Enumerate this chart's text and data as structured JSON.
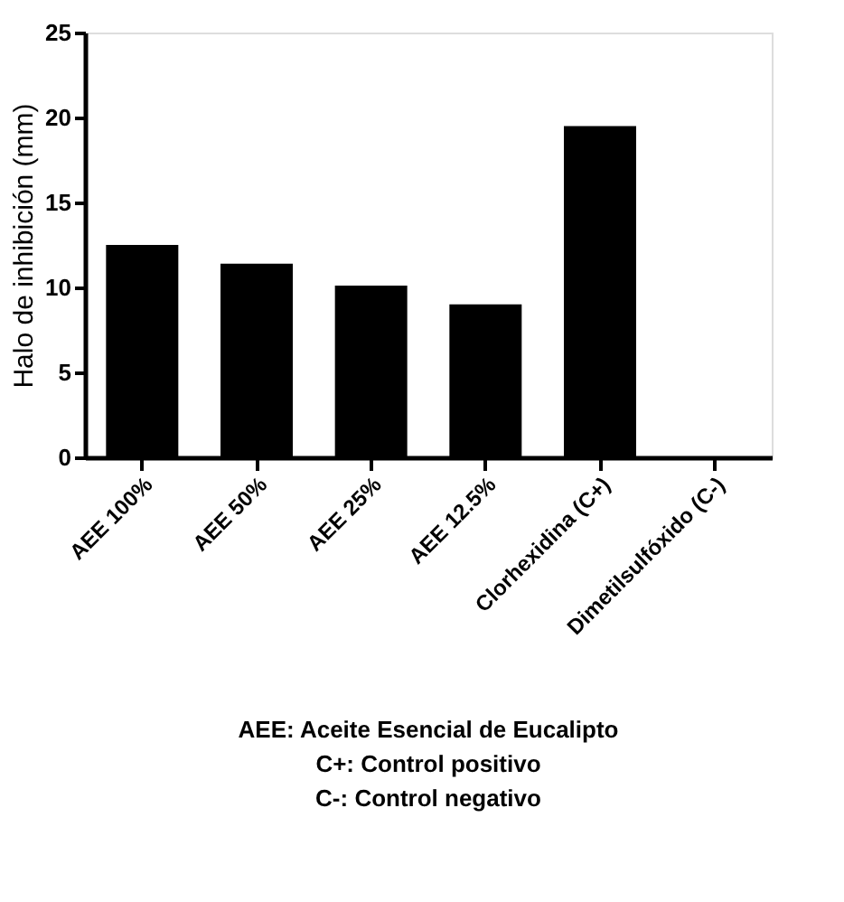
{
  "chart_data": {
    "type": "bar",
    "ylabel": "Halo de inhibición (mm)",
    "categories": [
      "AEE 100%",
      "AEE 50%",
      "AEE 25%",
      "AEE 12.5%",
      "Clorhexidina (C+)",
      "Dimetilsulfóxido (C-)"
    ],
    "values": [
      12.5,
      11.4,
      10.1,
      9.0,
      19.5,
      0
    ],
    "color": "#000000",
    "ylim": [
      0,
      25
    ],
    "yticks": [
      0,
      5,
      10,
      15,
      20,
      25
    ],
    "grid": false,
    "annotations": [
      "AEE: Aceite Esencial de Eucalipto",
      "C+: Control positivo",
      "C-: Control negativo"
    ]
  }
}
